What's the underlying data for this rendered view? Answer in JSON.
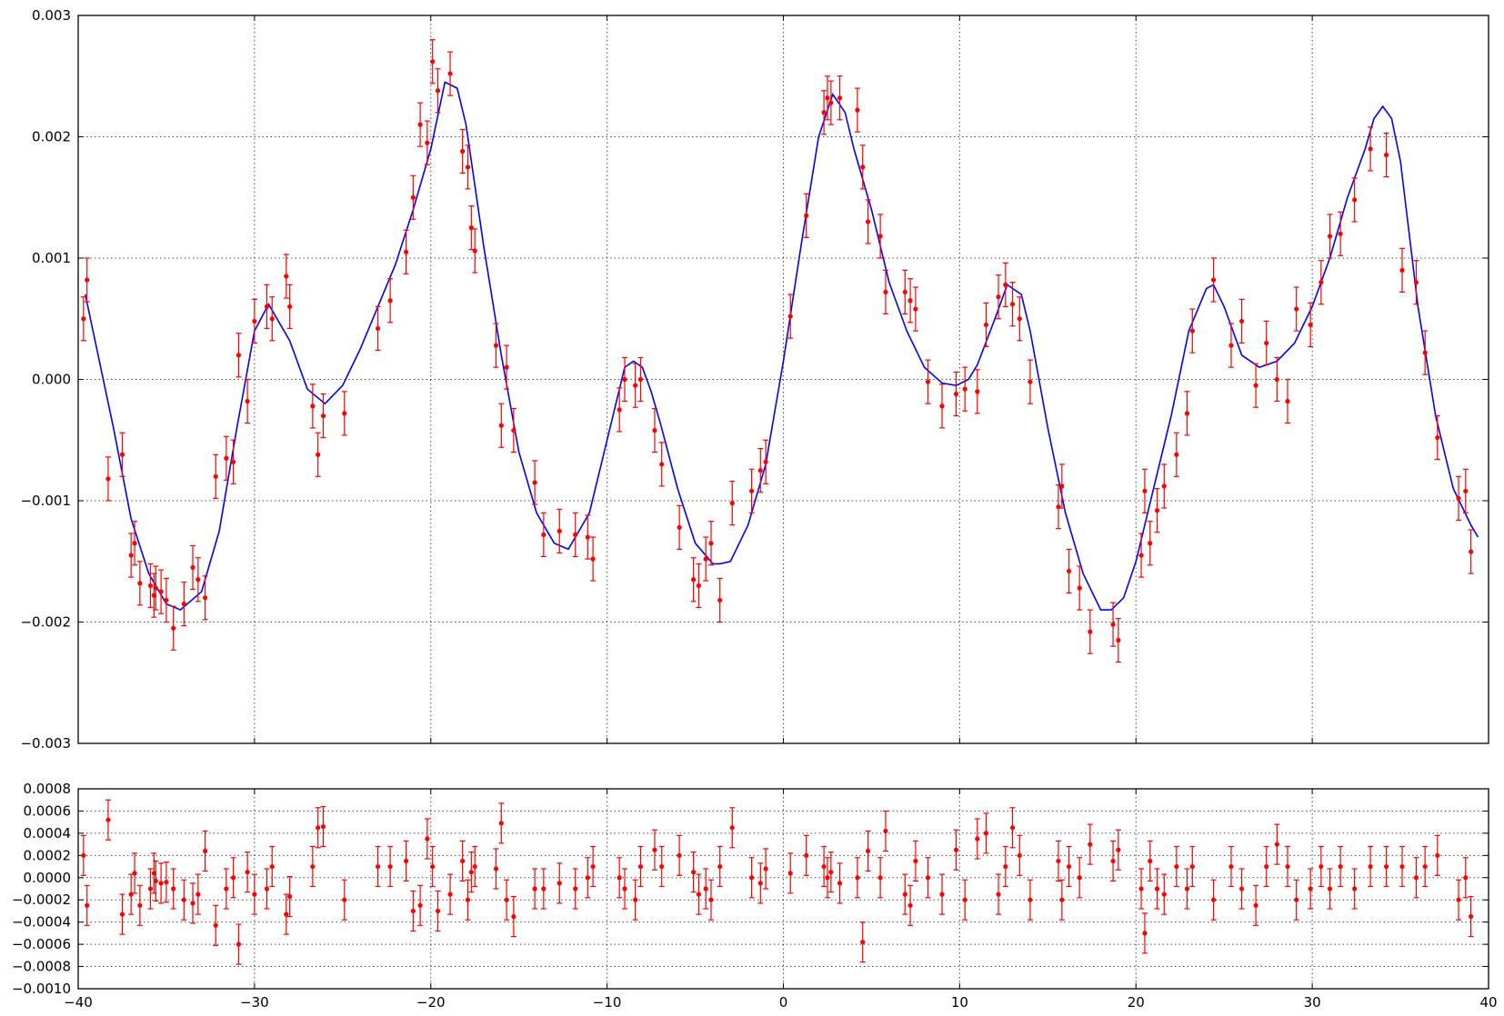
{
  "colors": {
    "model": "#0000ff",
    "data": "#ff0000",
    "axis": "#000000",
    "background": "#ffffff"
  },
  "chart_data": [
    {
      "type": "line",
      "panel": "main",
      "title": "",
      "xlabel": "",
      "ylabel": "",
      "xlim": [
        -40,
        40
      ],
      "ylim": [
        -0.003,
        0.003
      ],
      "grid": true,
      "x_ticks": [
        -40,
        -30,
        -20,
        -10,
        0,
        10,
        20,
        30,
        40
      ],
      "y_ticks": [
        -0.003,
        -0.002,
        -0.001,
        0.0,
        0.001,
        0.002,
        0.003
      ],
      "y_tick_labels": [
        "−0.003",
        "−0.002",
        "−0.001",
        "0.000",
        "0.001",
        "0.002",
        "0.003"
      ],
      "model_curve": {
        "style": "line",
        "x": [
          -39.6,
          -38,
          -37,
          -36,
          -35,
          -34.2,
          -33,
          -32,
          -31,
          -30,
          -29.2,
          -28,
          -27,
          -26,
          -25,
          -24,
          -23,
          -22,
          -21,
          -20,
          -19.2,
          -18.5,
          -18,
          -17.5,
          -17,
          -16,
          -15,
          -14,
          -13,
          -12.2,
          -11,
          -10,
          -9,
          -8.5,
          -8,
          -7.5,
          -7,
          -6,
          -5,
          -4,
          -3.6,
          -3,
          -2,
          -1,
          0,
          1,
          2,
          2.8,
          3.5,
          4,
          5,
          6,
          7,
          8,
          9,
          9.8,
          10.5,
          11,
          12,
          12.7,
          13.5,
          14,
          15,
          16,
          17,
          18,
          18.6,
          19.3,
          20,
          21,
          22,
          23,
          24,
          24.4,
          25,
          26,
          27,
          28,
          29,
          30,
          31,
          32,
          33,
          33.5,
          34,
          34.5,
          35,
          36,
          37,
          38,
          39,
          39.4
        ],
        "y": [
          0.0007,
          -0.0004,
          -0.00115,
          -0.0016,
          -0.00185,
          -0.0019,
          -0.00175,
          -0.00125,
          -0.0004,
          0.0004,
          0.00062,
          0.00032,
          -8e-05,
          -0.0002,
          -5e-05,
          0.00025,
          0.0006,
          0.00095,
          0.0014,
          0.0019,
          0.00245,
          0.0024,
          0.0021,
          0.0016,
          0.0011,
          0.0002,
          -0.0006,
          -0.0011,
          -0.00135,
          -0.0014,
          -0.0011,
          -0.0005,
          0.0001,
          0.00015,
          0.0001,
          -0.0001,
          -0.00035,
          -0.0009,
          -0.00135,
          -0.00152,
          -0.00152,
          -0.0015,
          -0.0012,
          -0.0007,
          0.00015,
          0.0011,
          0.002,
          0.00235,
          0.0022,
          0.0019,
          0.0014,
          0.0008,
          0.0004,
          0.0001,
          -3e-05,
          -5e-05,
          0.0,
          0.00012,
          0.0005,
          0.00078,
          0.0007,
          0.0004,
          -0.0004,
          -0.0011,
          -0.0016,
          -0.0019,
          -0.0019,
          -0.0018,
          -0.0015,
          -0.0009,
          -0.0003,
          0.0004,
          0.00075,
          0.00078,
          0.0006,
          0.0002,
          0.0001,
          0.00015,
          0.0003,
          0.0006,
          0.001,
          0.0015,
          0.0019,
          0.00215,
          0.00225,
          0.00215,
          0.0018,
          0.0006,
          -0.0003,
          -0.0009,
          -0.0012,
          -0.0013
        ]
      },
      "observations": {
        "style": "points-with-errorbars",
        "yerr": 0.00018,
        "x": [
          -39.7,
          -39.5,
          -38.3,
          -37.5,
          -37.0,
          -36.8,
          -36.5,
          -35.9,
          -35.7,
          -35.6,
          -35.3,
          -35.0,
          -34.6,
          -34.0,
          -33.5,
          -33.2,
          -32.8,
          -32.2,
          -31.6,
          -31.2,
          -30.9,
          -30.4,
          -30.0,
          -29.3,
          -29.0,
          -28.2,
          -28.0,
          -26.7,
          -26.4,
          -26.1,
          -24.9,
          -23.0,
          -22.3,
          -21.4,
          -21.0,
          -20.6,
          -20.2,
          -19.9,
          -19.6,
          -18.9,
          -18.2,
          -17.9,
          -17.7,
          -17.5,
          -16.3,
          -16.0,
          -15.7,
          -15.3,
          -14.1,
          -13.6,
          -12.7,
          -11.8,
          -11.1,
          -10.8,
          -9.3,
          -9.0,
          -8.4,
          -8.1,
          -7.3,
          -6.9,
          -5.9,
          -5.1,
          -4.8,
          -4.4,
          -4.1,
          -3.6,
          -2.9,
          -1.8,
          -1.3,
          -1.0,
          0.4,
          1.3,
          2.3,
          2.5,
          2.7,
          3.2,
          4.2,
          4.5,
          4.8,
          5.5,
          5.8,
          6.9,
          7.2,
          7.5,
          8.2,
          9.0,
          9.8,
          10.3,
          11.0,
          11.5,
          12.2,
          12.6,
          13.0,
          13.4,
          14.0,
          15.6,
          15.8,
          16.2,
          16.8,
          17.4,
          18.7,
          19.0,
          20.3,
          20.5,
          20.8,
          21.2,
          21.6,
          22.3,
          22.9,
          23.2,
          24.4,
          25.4,
          26.0,
          26.8,
          27.4,
          28.0,
          28.6,
          29.1,
          29.9,
          30.5,
          31.0,
          31.6,
          32.4,
          33.3,
          34.2,
          35.1,
          35.9,
          36.4,
          37.1,
          38.3,
          38.7,
          39.0
        ],
        "y": [
          0.0005,
          0.00082,
          -0.00082,
          -0.00062,
          -0.00145,
          -0.00135,
          -0.00168,
          -0.0017,
          -0.00178,
          -0.00172,
          -0.00175,
          -0.00182,
          -0.00205,
          -0.00185,
          -0.00155,
          -0.00165,
          -0.0018,
          -0.0008,
          -0.00065,
          -0.00068,
          0.0002,
          -0.00018,
          0.00048,
          0.0006,
          0.0005,
          0.00085,
          0.0006,
          -0.00022,
          -0.00062,
          -0.0003,
          -0.00028,
          0.00042,
          0.00065,
          0.00105,
          0.0015,
          0.0021,
          0.00195,
          0.00262,
          0.00238,
          0.00252,
          0.00188,
          0.00175,
          0.00125,
          0.00106,
          0.00028,
          -0.00038,
          0.0001,
          -0.00042,
          -0.00085,
          -0.00128,
          -0.00125,
          -0.00128,
          -0.0013,
          -0.00148,
          -0.00025,
          0.0,
          -5e-05,
          0.0,
          -0.00042,
          -0.0007,
          -0.00122,
          -0.00165,
          -0.0017,
          -0.00148,
          -0.00135,
          -0.00182,
          -0.00102,
          -0.00092,
          -0.00075,
          -0.00068,
          0.00052,
          0.00135,
          0.0022,
          0.00232,
          0.00228,
          0.00232,
          0.00222,
          0.00175,
          0.0013,
          0.00118,
          0.00072,
          0.00072,
          0.00065,
          0.00058,
          -2e-05,
          -0.00022,
          -0.00012,
          -8e-05,
          -0.0001,
          0.00045,
          0.00068,
          0.00078,
          0.00062,
          0.0005,
          -2e-05,
          -0.00105,
          -0.00088,
          -0.00158,
          -0.00172,
          -0.00208,
          -0.00202,
          -0.00215,
          -0.00145,
          -0.00092,
          -0.00135,
          -0.00108,
          -0.00088,
          -0.00062,
          -0.00028,
          0.0004,
          0.00082,
          0.00028,
          0.00048,
          -5e-05,
          0.0003,
          0.0,
          -0.00018,
          0.00058,
          0.00045,
          0.0008,
          0.00118,
          0.0012,
          0.00148,
          0.0019,
          0.00185,
          0.0009,
          0.0008,
          0.00022,
          -0.00048,
          -0.00098,
          -0.00092,
          -0.00142
        ]
      }
    },
    {
      "type": "scatter",
      "panel": "residuals",
      "title": "",
      "xlabel": "",
      "ylabel": "",
      "xlim": [
        -40,
        40
      ],
      "ylim": [
        -0.001,
        0.0008
      ],
      "grid": true,
      "x_ticks": [
        -40,
        -30,
        -20,
        -10,
        0,
        10,
        20,
        30,
        40
      ],
      "x_tick_labels": [
        "−40",
        "−30",
        "−20",
        "−10",
        "0",
        "10",
        "20",
        "30",
        "40"
      ],
      "y_ticks": [
        -0.001,
        -0.0008,
        -0.0006,
        -0.0004,
        -0.0002,
        0.0,
        0.0002,
        0.0004,
        0.0006,
        0.0008
      ],
      "y_tick_labels": [
        "−0.0010",
        "−0.0008",
        "−0.0006",
        "−0.0004",
        "−0.0002",
        "0.0000",
        "0.0002",
        "0.0004",
        "0.0006",
        "0.0008"
      ],
      "yerr": 0.00018,
      "x": [
        -39.7,
        -39.5,
        -38.3,
        -37.5,
        -37.0,
        -36.8,
        -36.5,
        -35.9,
        -35.7,
        -35.6,
        -35.3,
        -35.0,
        -34.6,
        -34.0,
        -33.5,
        -33.2,
        -32.8,
        -32.2,
        -31.6,
        -31.2,
        -30.9,
        -30.4,
        -30.0,
        -29.3,
        -29.0,
        -28.2,
        -28.0,
        -26.7,
        -26.4,
        -26.1,
        -24.9,
        -23.0,
        -22.3,
        -21.4,
        -21.0,
        -20.6,
        -20.2,
        -19.9,
        -19.6,
        -18.9,
        -18.2,
        -17.9,
        -17.7,
        -17.5,
        -16.3,
        -16.0,
        -15.7,
        -15.3,
        -14.1,
        -13.6,
        -12.7,
        -11.8,
        -11.1,
        -10.8,
        -9.3,
        -9.0,
        -8.4,
        -8.1,
        -7.3,
        -6.9,
        -5.9,
        -5.1,
        -4.8,
        -4.4,
        -4.1,
        -3.6,
        -2.9,
        -1.8,
        -1.3,
        -1.0,
        0.4,
        1.3,
        2.3,
        2.5,
        2.7,
        3.2,
        4.2,
        4.5,
        4.8,
        5.5,
        5.8,
        6.9,
        7.2,
        7.5,
        8.2,
        9.0,
        9.8,
        10.3,
        11.0,
        11.5,
        12.2,
        12.6,
        13.0,
        13.4,
        14.0,
        15.6,
        15.8,
        16.2,
        16.8,
        17.4,
        18.7,
        19.0,
        20.3,
        20.5,
        20.8,
        21.2,
        21.6,
        22.3,
        22.9,
        23.2,
        24.4,
        25.4,
        26.0,
        26.8,
        27.4,
        28.0,
        28.6,
        29.1,
        29.9,
        30.5,
        31.0,
        31.6,
        32.4,
        33.3,
        34.2,
        35.1,
        35.9,
        36.4,
        37.1,
        38.3,
        38.7,
        39.0
      ],
      "y": [
        0.0002,
        -0.00025,
        0.00052,
        -0.00033,
        -0.00015,
        4e-05,
        -0.00025,
        -0.0001,
        4e-05,
        -3e-05,
        -5e-05,
        -4e-05,
        -0.0001,
        -0.0002,
        -0.00023,
        -0.00015,
        0.00024,
        -0.00043,
        -0.0001,
        0.0,
        -0.0006,
        5e-05,
        -0.00015,
        -0.0001,
        0.0001,
        -0.00033,
        -0.00017,
        0.0001,
        0.00045,
        0.00046,
        -0.0002,
        0.0001,
        0.0001,
        0.00015,
        -0.0003,
        -0.00025,
        0.00035,
        0.0001,
        -0.0003,
        -0.00015,
        0.00015,
        -0.0002,
        5e-05,
        0.0001,
        8e-05,
        0.00049,
        -0.0002,
        -0.00035,
        -0.0001,
        -0.0001,
        -5e-05,
        -0.0001,
        0.0,
        0.0001,
        0.0,
        -0.0001,
        -0.0002,
        0.0001,
        0.00025,
        0.0001,
        0.0002,
        5e-05,
        -0.00015,
        -0.0001,
        -0.0002,
        0.0001,
        0.00045,
        0.0,
        -5e-05,
        8e-05,
        4e-05,
        0.0002,
        0.0001,
        0.0,
        5e-05,
        -5e-05,
        0.0,
        -0.00058,
        0.00024,
        0.0,
        0.00042,
        -0.00015,
        -0.00025,
        0.00015,
        0.0,
        -0.00015,
        0.00025,
        -0.0002,
        0.00035,
        0.0004,
        -0.00015,
        0.0001,
        0.00045,
        0.0002,
        -0.0002,
        0.00015,
        -0.0002,
        0.0001,
        0.0,
        0.0003,
        0.00015,
        0.00025,
        -0.0001,
        -0.0005,
        0.00015,
        -0.0001,
        -0.00015,
        0.0001,
        -0.0001,
        0.0001,
        -0.0002,
        0.0001,
        -0.0001,
        -0.00025,
        0.0001,
        0.0003,
        0.0001,
        -0.0002,
        -0.0001,
        0.0001,
        -0.0001,
        0.0001,
        -0.0001,
        0.0001,
        0.0001,
        0.0001,
        0.0,
        0.0001,
        0.0002,
        -0.0002,
        0.0,
        -0.00035
      ]
    }
  ]
}
